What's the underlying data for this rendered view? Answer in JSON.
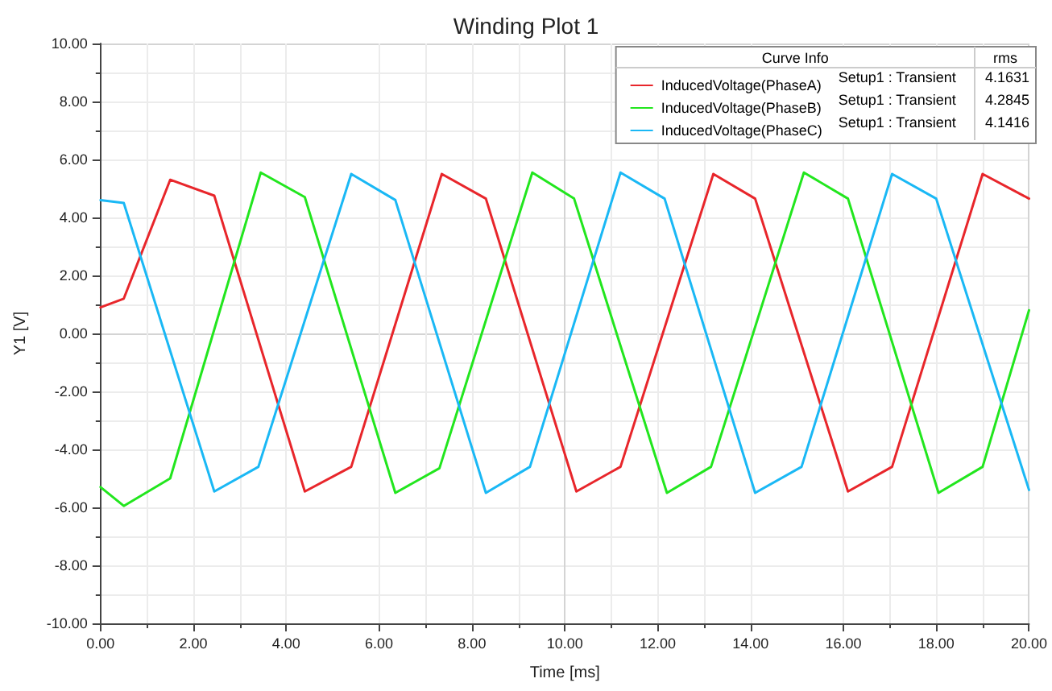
{
  "chart_data": {
    "type": "line",
    "title": "Winding Plot 1",
    "xlabel": "Time [ms]",
    "ylabel": "Y1 [V]",
    "xlim": [
      0,
      20
    ],
    "ylim": [
      -10,
      10
    ],
    "xticks": [
      {
        "value": 0,
        "label": "0.00"
      },
      {
        "value": 2,
        "label": "2.00"
      },
      {
        "value": 4,
        "label": "4.00"
      },
      {
        "value": 6,
        "label": "6.00"
      },
      {
        "value": 8,
        "label": "8.00"
      },
      {
        "value": 10,
        "label": "10.00"
      },
      {
        "value": 12,
        "label": "12.00"
      },
      {
        "value": 14,
        "label": "14.00"
      },
      {
        "value": 16,
        "label": "16.00"
      },
      {
        "value": 18,
        "label": "18.00"
      },
      {
        "value": 20,
        "label": "20.00"
      }
    ],
    "yticks": [
      {
        "value": -10,
        "label": "-10.00"
      },
      {
        "value": -8,
        "label": "-8.00"
      },
      {
        "value": -6,
        "label": "-6.00"
      },
      {
        "value": -4,
        "label": "-4.00"
      },
      {
        "value": -2,
        "label": "-2.00"
      },
      {
        "value": 0,
        "label": "0.00"
      },
      {
        "value": 2,
        "label": "2.00"
      },
      {
        "value": 4,
        "label": "4.00"
      },
      {
        "value": 6,
        "label": "6.00"
      },
      {
        "value": 8,
        "label": "8.00"
      },
      {
        "value": 10,
        "label": "10.00"
      }
    ],
    "grid": true,
    "legend": "top right",
    "marker": "none",
    "line_style": "solid",
    "series": [
      {
        "name": "InducedVoltage(PhaseA)",
        "color": "#e8262b",
        "x": [
          0,
          0.5,
          1.5,
          2.45,
          4.4,
          5.4,
          7.35,
          8.3,
          10.25,
          11.2,
          13.2,
          14.1,
          16.1,
          17.05,
          19.0,
          20
        ],
        "values": [
          0.9,
          1.2,
          5.3,
          4.75,
          -5.45,
          -4.6,
          5.5,
          4.65,
          -5.45,
          -4.6,
          5.5,
          4.65,
          -5.45,
          -4.6,
          5.5,
          4.65
        ]
      },
      {
        "name": "InducedVoltage(PhaseB)",
        "color": "#22e61e",
        "x": [
          0,
          0.5,
          1.5,
          3.45,
          4.4,
          6.35,
          7.3,
          9.3,
          10.2,
          12.2,
          13.15,
          15.15,
          16.1,
          18.05,
          19.0,
          20
        ],
        "values": [
          -5.3,
          -5.95,
          -5.0,
          5.55,
          4.7,
          -5.5,
          -4.65,
          5.55,
          4.65,
          -5.5,
          -4.6,
          5.55,
          4.65,
          -5.5,
          -4.6,
          0.8
        ]
      },
      {
        "name": "InducedVoltage(PhaseC)",
        "color": "#1ab8f5",
        "x": [
          0,
          0.5,
          2.45,
          3.4,
          5.4,
          6.35,
          8.3,
          9.25,
          11.2,
          12.15,
          14.1,
          15.1,
          17.05,
          18.0,
          20
        ],
        "values": [
          4.6,
          4.5,
          -5.45,
          -4.6,
          5.5,
          4.6,
          -5.5,
          -4.6,
          5.55,
          4.65,
          -5.5,
          -4.6,
          5.5,
          4.65,
          -5.4
        ]
      }
    ],
    "annotations": [
      "Curve Info",
      "rms",
      "Setup1 : Transient",
      "4.1631",
      "Setup1 : Transient",
      "4.2845",
      "Setup1 : Transient",
      "4.1416"
    ]
  }
}
